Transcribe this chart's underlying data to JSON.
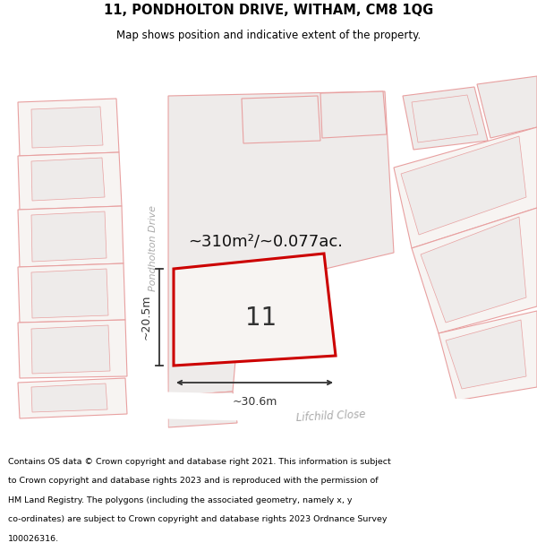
{
  "title_line1": "11, PONDHOLTON DRIVE, WITHAM, CM8 1QG",
  "title_line2": "Map shows position and indicative extent of the property.",
  "area_label": "~310m²/~0.077ac.",
  "plot_number": "11",
  "dim_width": "~30.6m",
  "dim_height": "~20.5m",
  "road_label1": "Pondholton Drive",
  "road_label2": "Lifchild Close",
  "footer_lines": [
    "Contains OS data © Crown copyright and database right 2021. This information is subject",
    "to Crown copyright and database rights 2023 and is reproduced with the permission of",
    "HM Land Registry. The polygons (including the associated geometry, namely x, y",
    "co-ordinates) are subject to Crown copyright and database rights 2023 Ordnance Survey",
    "100026316."
  ],
  "bg_color": "#f7f4f2",
  "plot_fill": "#f0eeec",
  "plot_color": "#cc0000",
  "other_edge_color": "#e8a0a0",
  "other_fill": "#eeebea",
  "road_fill": "#ffffff",
  "title_bg": "#ffffff",
  "footer_bg": "#ffffff",
  "dim_color": "#333333",
  "road_text_color": "#aaaaaa",
  "number_color": "#333333",
  "area_color": "#111111"
}
